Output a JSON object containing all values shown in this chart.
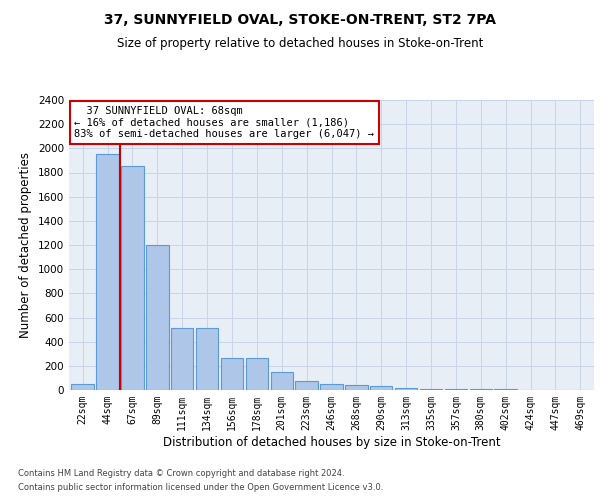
{
  "title": "37, SUNNYFIELD OVAL, STOKE-ON-TRENT, ST2 7PA",
  "subtitle": "Size of property relative to detached houses in Stoke-on-Trent",
  "xlabel": "Distribution of detached houses by size in Stoke-on-Trent",
  "ylabel": "Number of detached properties",
  "footnote1": "Contains HM Land Registry data © Crown copyright and database right 2024.",
  "footnote2": "Contains public sector information licensed under the Open Government Licence v3.0.",
  "bar_color": "#aec6e8",
  "bar_edge_color": "#5b9bd5",
  "property_line_color": "#cc0000",
  "annotation_box_edge": "#cc0000",
  "background_color": "#ffffff",
  "grid_color": "#c8d4e8",
  "ax_bg_color": "#e8eef5",
  "categories": [
    "22sqm",
    "44sqm",
    "67sqm",
    "89sqm",
    "111sqm",
    "134sqm",
    "156sqm",
    "178sqm",
    "201sqm",
    "223sqm",
    "246sqm",
    "268sqm",
    "290sqm",
    "313sqm",
    "335sqm",
    "357sqm",
    "380sqm",
    "402sqm",
    "424sqm",
    "447sqm",
    "469sqm"
  ],
  "values": [
    50,
    1950,
    1850,
    1200,
    510,
    510,
    265,
    265,
    150,
    75,
    50,
    40,
    30,
    20,
    12,
    8,
    8,
    5,
    4,
    4,
    4
  ],
  "property_line_x": 1.5,
  "property_label": "37 SUNNYFIELD OVAL: 68sqm",
  "ann_line2": "← 16% of detached houses are smaller (1,186)",
  "ann_line3": "83% of semi-detached houses are larger (6,047) →",
  "ylim": [
    0,
    2400
  ],
  "yticks": [
    0,
    200,
    400,
    600,
    800,
    1000,
    1200,
    1400,
    1600,
    1800,
    2000,
    2200,
    2400
  ]
}
